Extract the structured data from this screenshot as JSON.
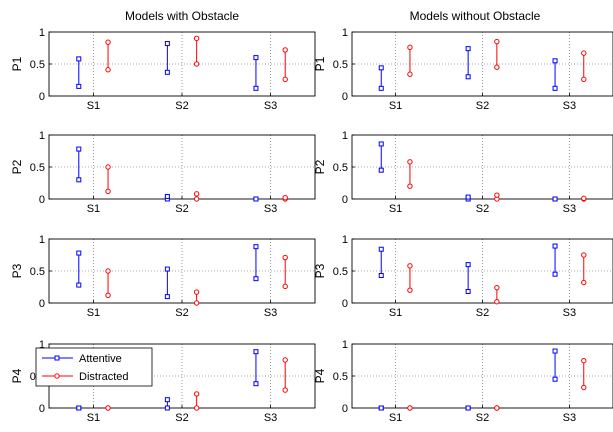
{
  "figure": {
    "col_titles": [
      "Models with Obstacle",
      "Models without Obstacle"
    ],
    "row_labels": [
      "P1",
      "P2",
      "P3",
      "P4"
    ],
    "legend": {
      "entries": [
        {
          "label": "Attentive",
          "color": "#0000ff",
          "marker": "square"
        },
        {
          "label": "Distracted",
          "color": "#ff0000",
          "marker": "circle"
        }
      ],
      "placement": "top-left of P4 with-obstacle panel"
    }
  },
  "chart_data": {
    "type": "errorbar-range",
    "layout": {
      "rows": 4,
      "cols": 2
    },
    "ylim": [
      0,
      1
    ],
    "yticks": [
      0,
      0.5,
      1
    ],
    "categories": [
      "S1",
      "S2",
      "S3"
    ],
    "grid": "dotted",
    "series_names": [
      "Attentive",
      "Distracted"
    ],
    "series_colors": [
      "#0000ff",
      "#ff0000"
    ],
    "panels": [
      {
        "row": "P1",
        "col": "Models with Obstacle",
        "attentive": [
          [
            0.15,
            0.58
          ],
          [
            0.37,
            0.82
          ],
          [
            0.12,
            0.6
          ]
        ],
        "distracted": [
          [
            0.41,
            0.84
          ],
          [
            0.5,
            0.9
          ],
          [
            0.26,
            0.72
          ]
        ]
      },
      {
        "row": "P1",
        "col": "Models without Obstacle",
        "attentive": [
          [
            0.12,
            0.44
          ],
          [
            0.3,
            0.74
          ],
          [
            0.12,
            0.55
          ]
        ],
        "distracted": [
          [
            0.34,
            0.76
          ],
          [
            0.45,
            0.85
          ],
          [
            0.26,
            0.67
          ]
        ]
      },
      {
        "row": "P2",
        "col": "Models with Obstacle",
        "attentive": [
          [
            0.3,
            0.78
          ],
          [
            0.0,
            0.04
          ],
          [
            0.0,
            0.0
          ]
        ],
        "distracted": [
          [
            0.12,
            0.5
          ],
          [
            0.0,
            0.08
          ],
          [
            0.0,
            0.02
          ]
        ]
      },
      {
        "row": "P2",
        "col": "Models without Obstacle",
        "attentive": [
          [
            0.45,
            0.86
          ],
          [
            0.0,
            0.03
          ],
          [
            0.0,
            0.0
          ]
        ],
        "distracted": [
          [
            0.2,
            0.58
          ],
          [
            0.0,
            0.06
          ],
          [
            0.0,
            0.01
          ]
        ]
      },
      {
        "row": "P3",
        "col": "Models with Obstacle",
        "attentive": [
          [
            0.28,
            0.78
          ],
          [
            0.1,
            0.53
          ],
          [
            0.38,
            0.88
          ]
        ],
        "distracted": [
          [
            0.12,
            0.5
          ],
          [
            0.0,
            0.17
          ],
          [
            0.26,
            0.71
          ]
        ]
      },
      {
        "row": "P3",
        "col": "Models without Obstacle",
        "attentive": [
          [
            0.43,
            0.84
          ],
          [
            0.18,
            0.6
          ],
          [
            0.45,
            0.89
          ]
        ],
        "distracted": [
          [
            0.2,
            0.58
          ],
          [
            0.02,
            0.24
          ],
          [
            0.32,
            0.75
          ]
        ]
      },
      {
        "row": "P4",
        "col": "Models with Obstacle",
        "attentive": [
          [
            0.0,
            0.0
          ],
          [
            0.0,
            0.13
          ],
          [
            0.38,
            0.88
          ]
        ],
        "distracted": [
          [
            0.0,
            0.0
          ],
          [
            0.0,
            0.22
          ],
          [
            0.28,
            0.75
          ]
        ]
      },
      {
        "row": "P4",
        "col": "Models without Obstacle",
        "attentive": [
          [
            0.0,
            0.0
          ],
          [
            0.0,
            0.0
          ],
          [
            0.45,
            0.89
          ]
        ],
        "distracted": [
          [
            0.0,
            0.0
          ],
          [
            0.0,
            0.0
          ],
          [
            0.32,
            0.74
          ]
        ]
      }
    ]
  }
}
